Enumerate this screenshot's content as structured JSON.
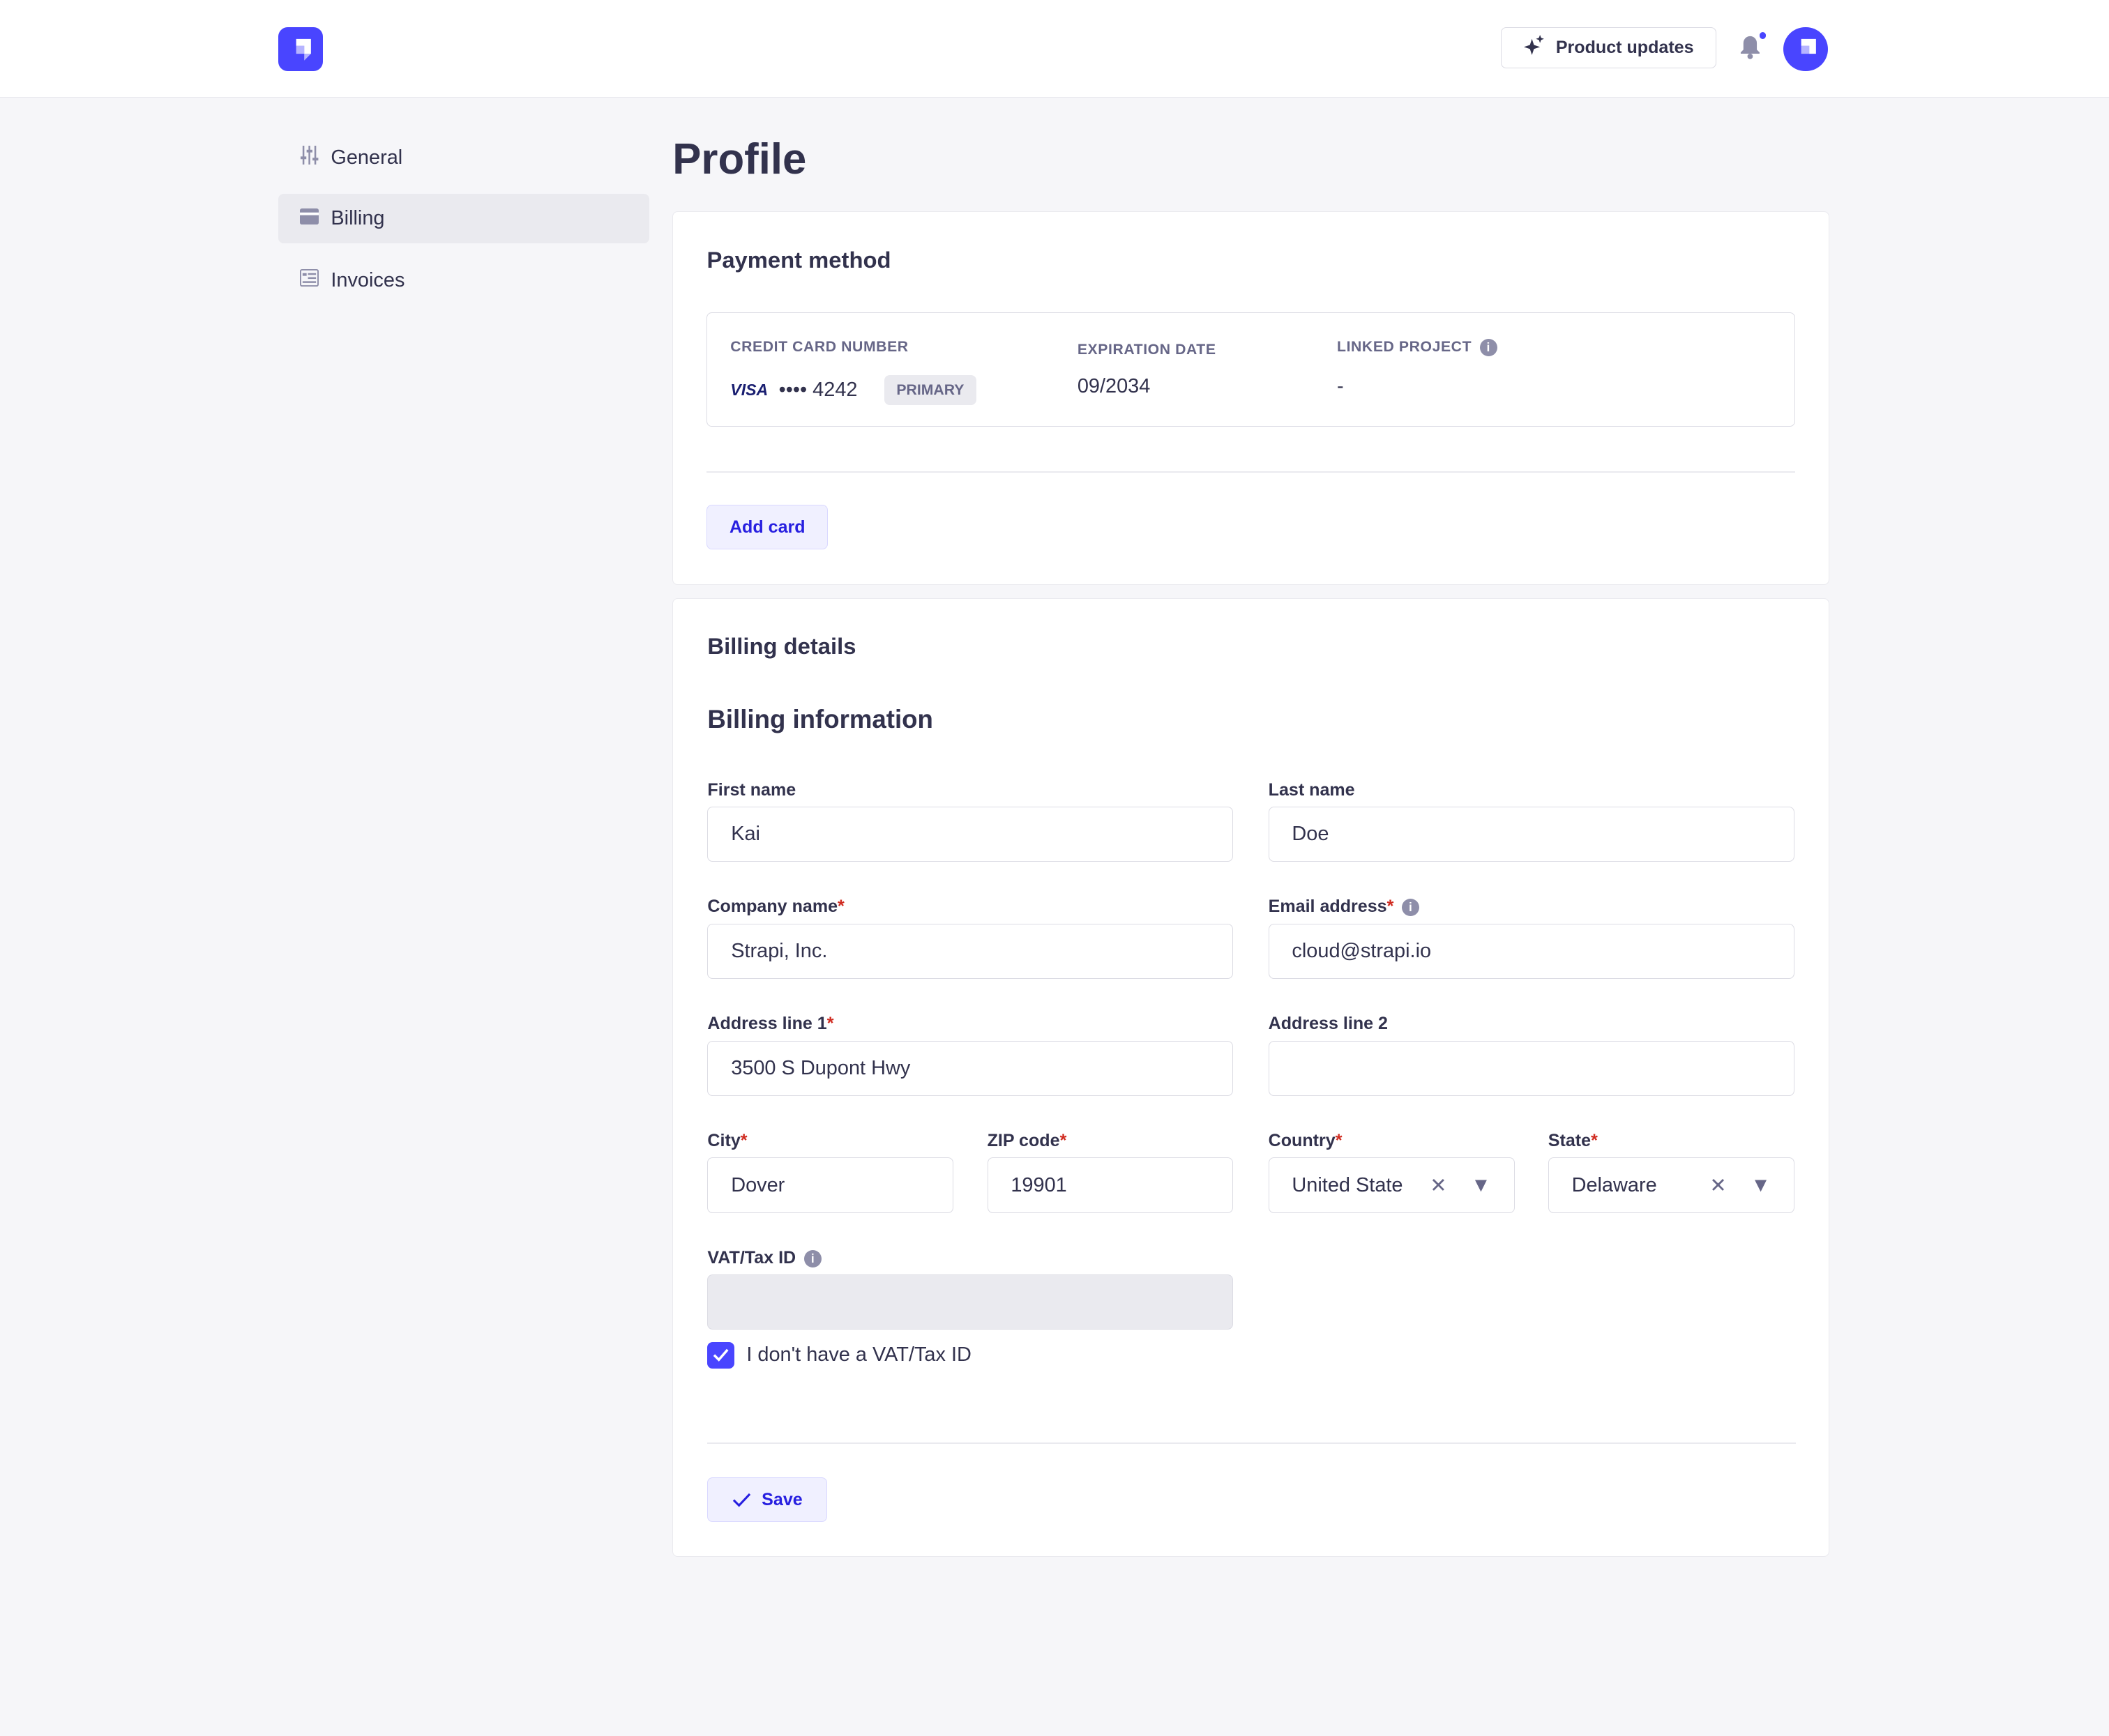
{
  "header": {
    "product_updates": "Product updates",
    "has_notification": true,
    "brand_color": "#4945ff"
  },
  "sidebar": {
    "items": [
      {
        "label": "General",
        "icon": "sliders-icon"
      },
      {
        "label": "Billing",
        "icon": "credit-card-icon",
        "active": true
      },
      {
        "label": "Invoices",
        "icon": "invoice-icon"
      }
    ]
  },
  "page": {
    "title": "Profile"
  },
  "payment": {
    "heading": "Payment method",
    "card_number_label": "CREDIT CARD NUMBER",
    "brand": "VISA",
    "masked": "•••• 4242",
    "badge": "PRIMARY",
    "expiration_label": "EXPIRATION DATE",
    "expiration": "09/2034",
    "linked_label": "LINKED PROJECT",
    "linked": "-",
    "add_card": "Add card"
  },
  "billing": {
    "heading": "Billing details",
    "subheading": "Billing information",
    "first_name": {
      "label": "First name",
      "value": "Kai"
    },
    "last_name": {
      "label": "Last name",
      "value": "Doe"
    },
    "company": {
      "label": "Company name",
      "value": "Strapi, Inc."
    },
    "email": {
      "label": "Email address",
      "value": "cloud@strapi.io"
    },
    "address1": {
      "label": "Address line 1",
      "value": "3500 S Dupont Hwy"
    },
    "address2": {
      "label": "Address line 2",
      "value": ""
    },
    "city": {
      "label": "City",
      "value": "Dover"
    },
    "zip": {
      "label": "ZIP code",
      "value": "19901"
    },
    "country": {
      "label": "Country",
      "value": "United State"
    },
    "state": {
      "label": "State",
      "value": "Delaware"
    },
    "vat": {
      "label": "VAT/Tax ID",
      "value": ""
    },
    "no_vat": {
      "label": "I don't have a VAT/Tax ID",
      "checked": true
    },
    "required_mark": "*",
    "save": "Save"
  }
}
